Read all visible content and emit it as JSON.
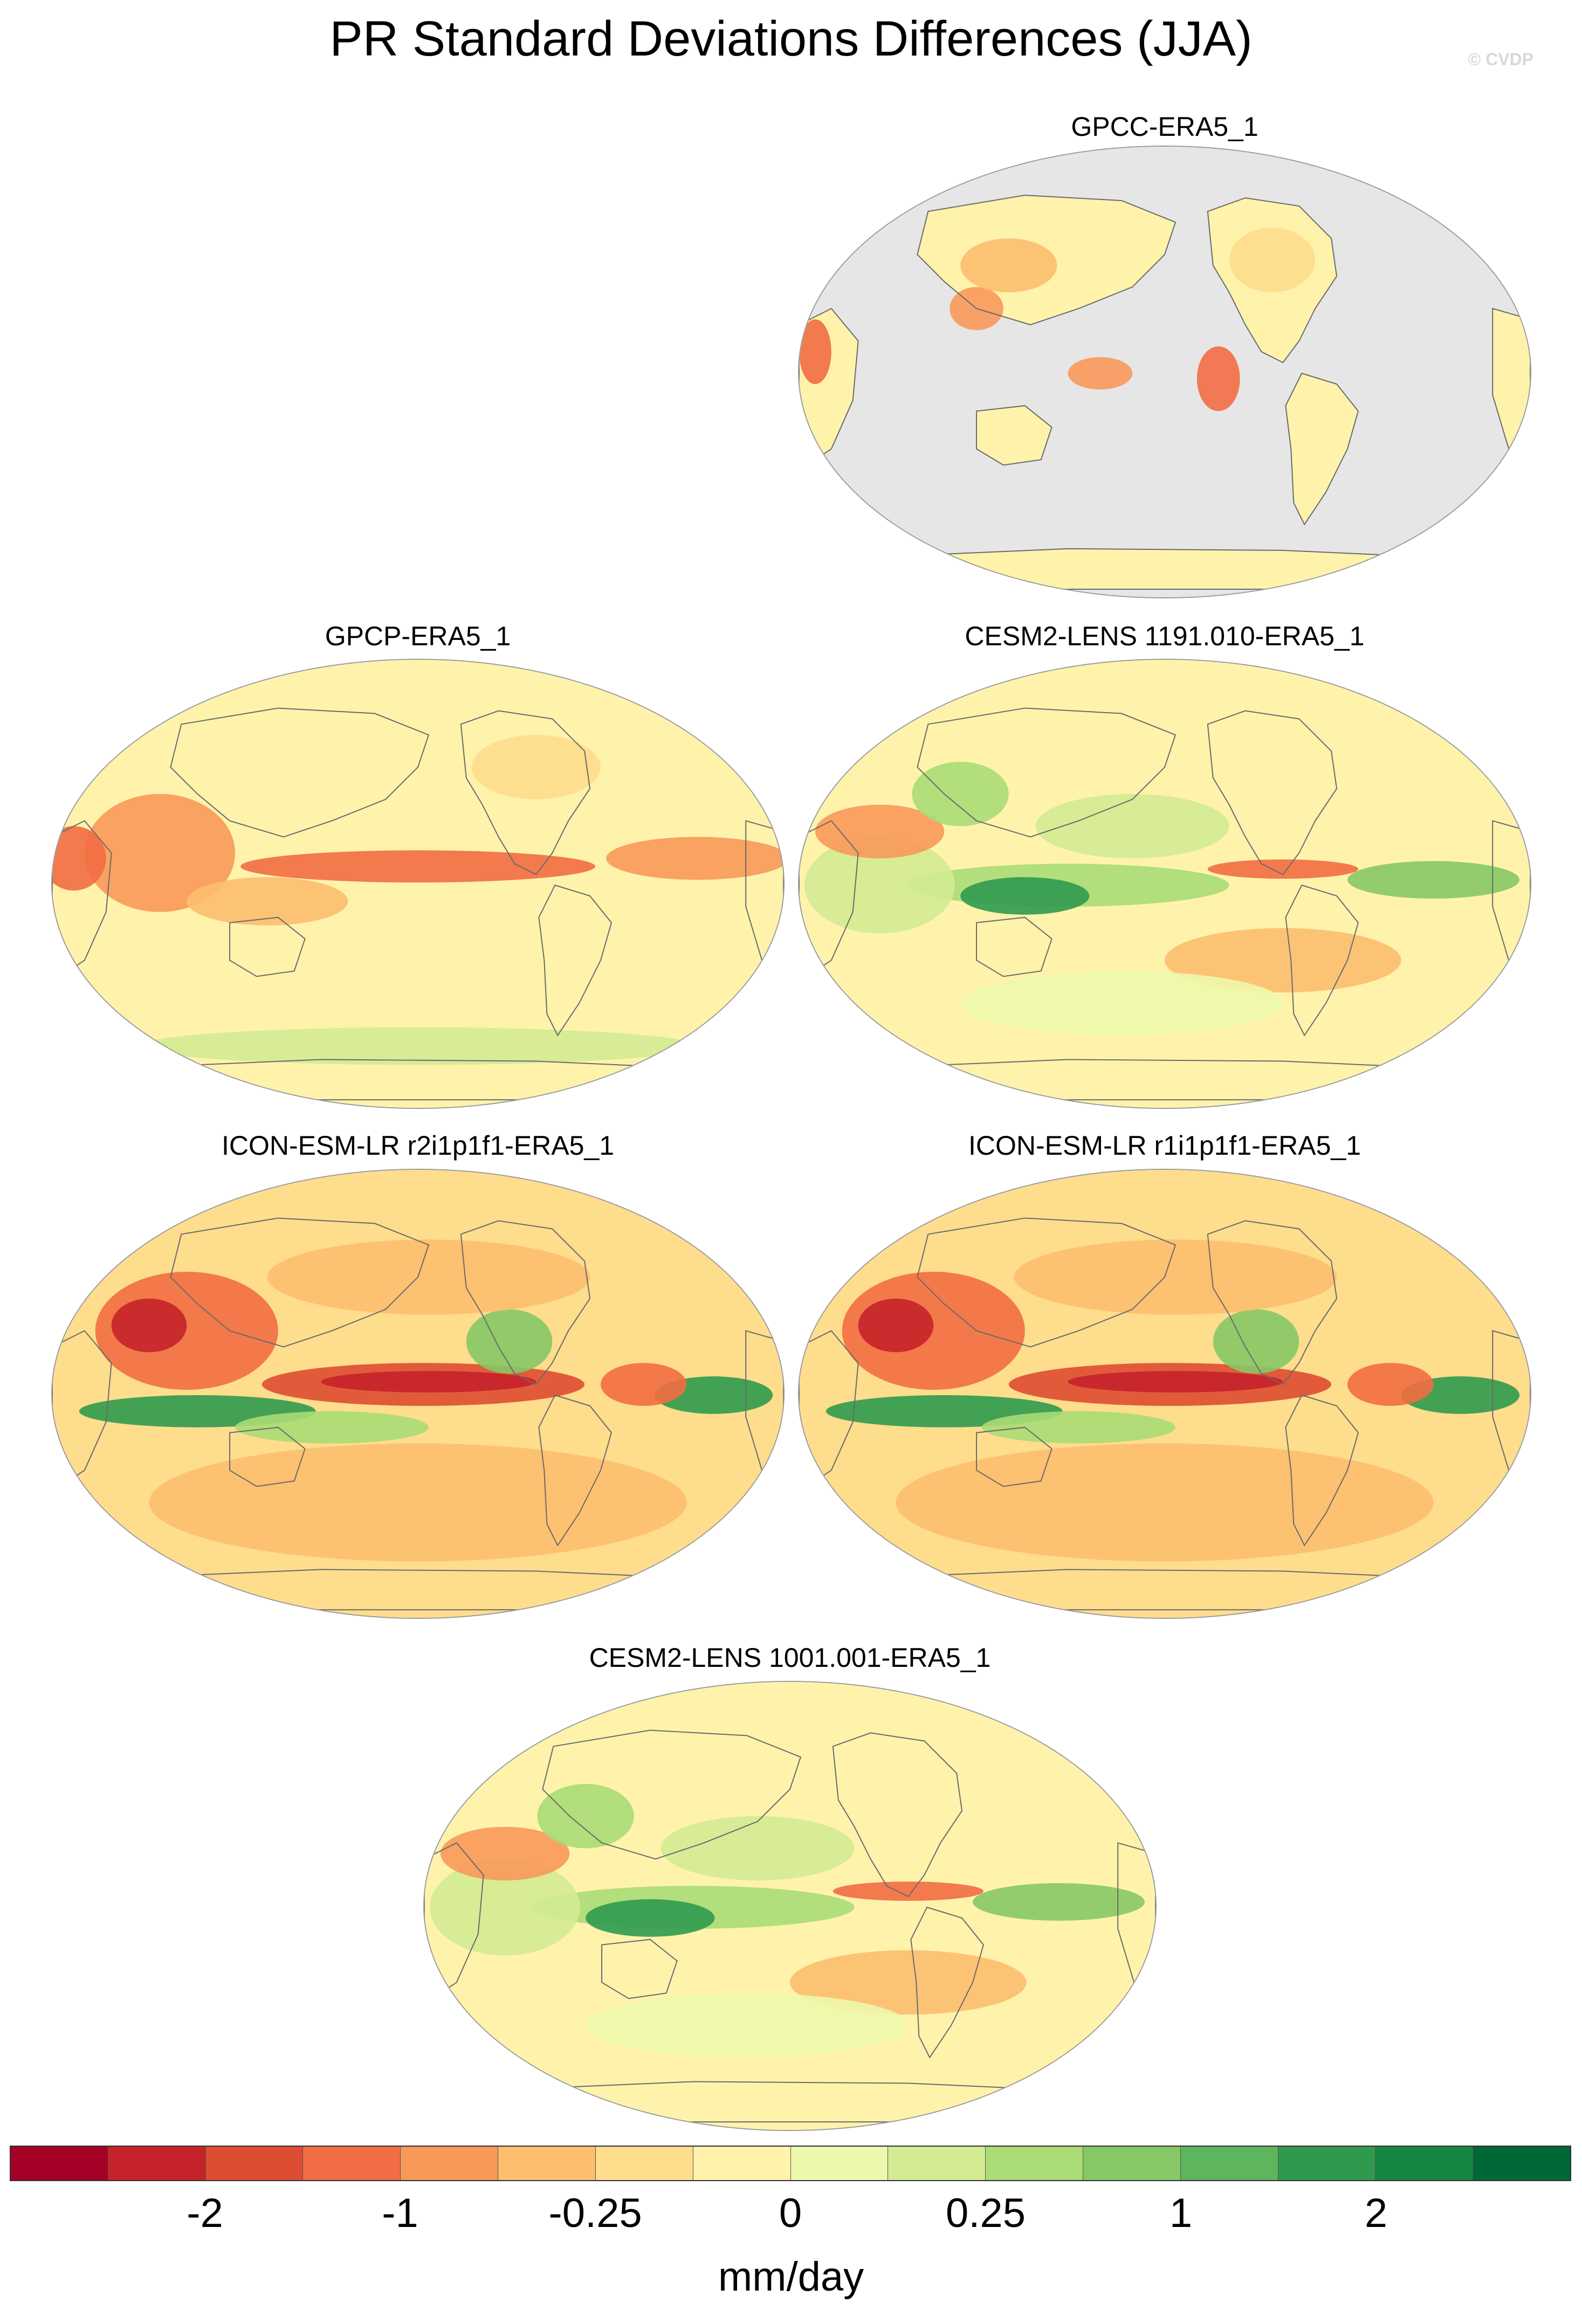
{
  "title": "PR Standard Deviations Differences (JJA)",
  "credit": "© CVDP",
  "panels": [
    {
      "label": "GPCC-ERA5_1",
      "style": "gpcc"
    },
    {
      "label": "GPCP-ERA5_1",
      "style": "gpcp"
    },
    {
      "label": "CESM2-LENS 1191.010-ERA5_1",
      "style": "cesm"
    },
    {
      "label": "ICON-ESM-LR r2i1p1f1-ERA5_1",
      "style": "icon"
    },
    {
      "label": "ICON-ESM-LR r1i1p1f1-ERA5_1",
      "style": "icon"
    },
    {
      "label": "CESM2-LENS 1001.001-ERA5_1",
      "style": "cesm"
    }
  ],
  "colorbar": {
    "colors": [
      "#a50026",
      "#c5222a",
      "#de4c32",
      "#f26d43",
      "#f8995a",
      "#fdbe6f",
      "#fedd8d",
      "#fff3ac",
      "#eef8ac",
      "#d3eb92",
      "#aadb76",
      "#86c866",
      "#5db55d",
      "#2f9a4e",
      "#148641",
      "#006837"
    ],
    "ticks": [
      "-2",
      "-1",
      "-0.25",
      "0",
      "0.25",
      "1",
      "2"
    ],
    "tick_boundaries": [
      2,
      4,
      6,
      8,
      10,
      12,
      14
    ],
    "units": "mm/day"
  }
}
